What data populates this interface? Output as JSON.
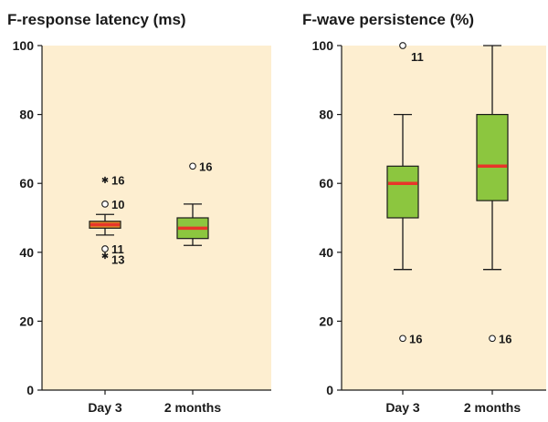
{
  "colors": {
    "plot_background": "#fdeed0",
    "box_day3_left": "#e0902a",
    "box_green": "#8cc63f",
    "median": "#e8352a",
    "line": "#1a1a1a"
  },
  "chart_data": [
    {
      "type": "box",
      "title": "F-response latency (ms)",
      "ylim": [
        0,
        100
      ],
      "yticks": [
        "0",
        "20",
        "40",
        "60",
        "80",
        "100"
      ],
      "categories": [
        "Day 3",
        "2 months"
      ],
      "grid": false,
      "boxes": [
        {
          "category": "Day 3",
          "whisker_low": 45,
          "q1": 47,
          "median": 48,
          "q3": 49,
          "whisker_high": 51,
          "box_color": "#e0902a",
          "outliers": [
            {
              "value": 61,
              "label": "16",
              "marker": "star"
            },
            {
              "value": 54,
              "label": "10",
              "marker": "circle"
            },
            {
              "value": 41,
              "label": "11",
              "marker": "circle"
            },
            {
              "value": 39,
              "label": "13",
              "marker": "star"
            }
          ]
        },
        {
          "category": "2 months",
          "whisker_low": 42,
          "q1": 44,
          "median": 47,
          "q3": 50,
          "whisker_high": 54,
          "box_color": "#8cc63f",
          "outliers": [
            {
              "value": 65,
              "label": "16",
              "marker": "circle"
            }
          ]
        }
      ]
    },
    {
      "type": "box",
      "title": "F-wave persistence (%)",
      "ylim": [
        0,
        100
      ],
      "yticks": [
        "0",
        "20",
        "40",
        "60",
        "80",
        "100"
      ],
      "categories": [
        "Day 3",
        "2 months"
      ],
      "grid": false,
      "boxes": [
        {
          "category": "Day 3",
          "whisker_low": 35,
          "q1": 50,
          "median": 60,
          "q3": 65,
          "whisker_high": 80,
          "box_color": "#8cc63f",
          "outliers": [
            {
              "value": 100,
              "label": "11",
              "marker": "circle"
            },
            {
              "value": 15,
              "label": "16",
              "marker": "circle"
            }
          ]
        },
        {
          "category": "2 months",
          "whisker_low": 35,
          "q1": 55,
          "median": 65,
          "q3": 80,
          "whisker_high": 100,
          "box_color": "#8cc63f",
          "outliers": [
            {
              "value": 15,
              "label": "16",
              "marker": "circle"
            }
          ]
        }
      ]
    }
  ]
}
